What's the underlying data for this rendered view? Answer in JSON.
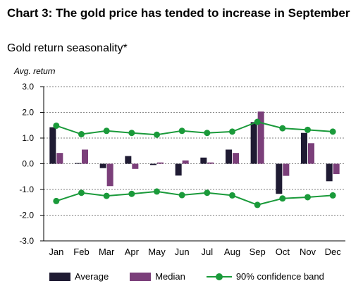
{
  "title": "Chart 3: The gold price has tended to increase in September",
  "subtitle": "Gold return seasonality*",
  "chart_data": {
    "type": "bar",
    "ylabel": "Avg. return",
    "ylim": [
      -3.0,
      3.0
    ],
    "yticks": [
      "3.0",
      "2.0",
      "1.0",
      "0.0",
      "-1.0",
      "-2.0",
      "-3.0"
    ],
    "grid": true,
    "legend_position": "bottom",
    "categories": [
      "Jan",
      "Feb",
      "Mar",
      "Apr",
      "May",
      "Jun",
      "Jul",
      "Aug",
      "Sep",
      "Oct",
      "Nov",
      "Dec"
    ],
    "series": [
      {
        "name": "Average",
        "type": "bar",
        "color": "#1f1b33",
        "values": [
          1.42,
          0.03,
          -0.17,
          0.3,
          -0.05,
          -0.46,
          0.24,
          0.55,
          1.62,
          -1.17,
          1.2,
          -0.68
        ]
      },
      {
        "name": "Median",
        "type": "bar",
        "color": "#7b3f7a",
        "values": [
          0.42,
          0.55,
          -0.87,
          -0.2,
          0.05,
          0.13,
          0.05,
          0.42,
          2.03,
          -0.47,
          0.8,
          -0.4
        ]
      },
      {
        "name": "90% confidence band",
        "type": "line",
        "color": "#1a9a3a",
        "upper": [
          1.48,
          1.15,
          1.28,
          1.2,
          1.13,
          1.28,
          1.2,
          1.25,
          1.63,
          1.38,
          1.32,
          1.25
        ],
        "lower": [
          -1.45,
          -1.13,
          -1.25,
          -1.17,
          -1.08,
          -1.22,
          -1.13,
          -1.23,
          -1.6,
          -1.35,
          -1.3,
          -1.23
        ]
      }
    ]
  }
}
